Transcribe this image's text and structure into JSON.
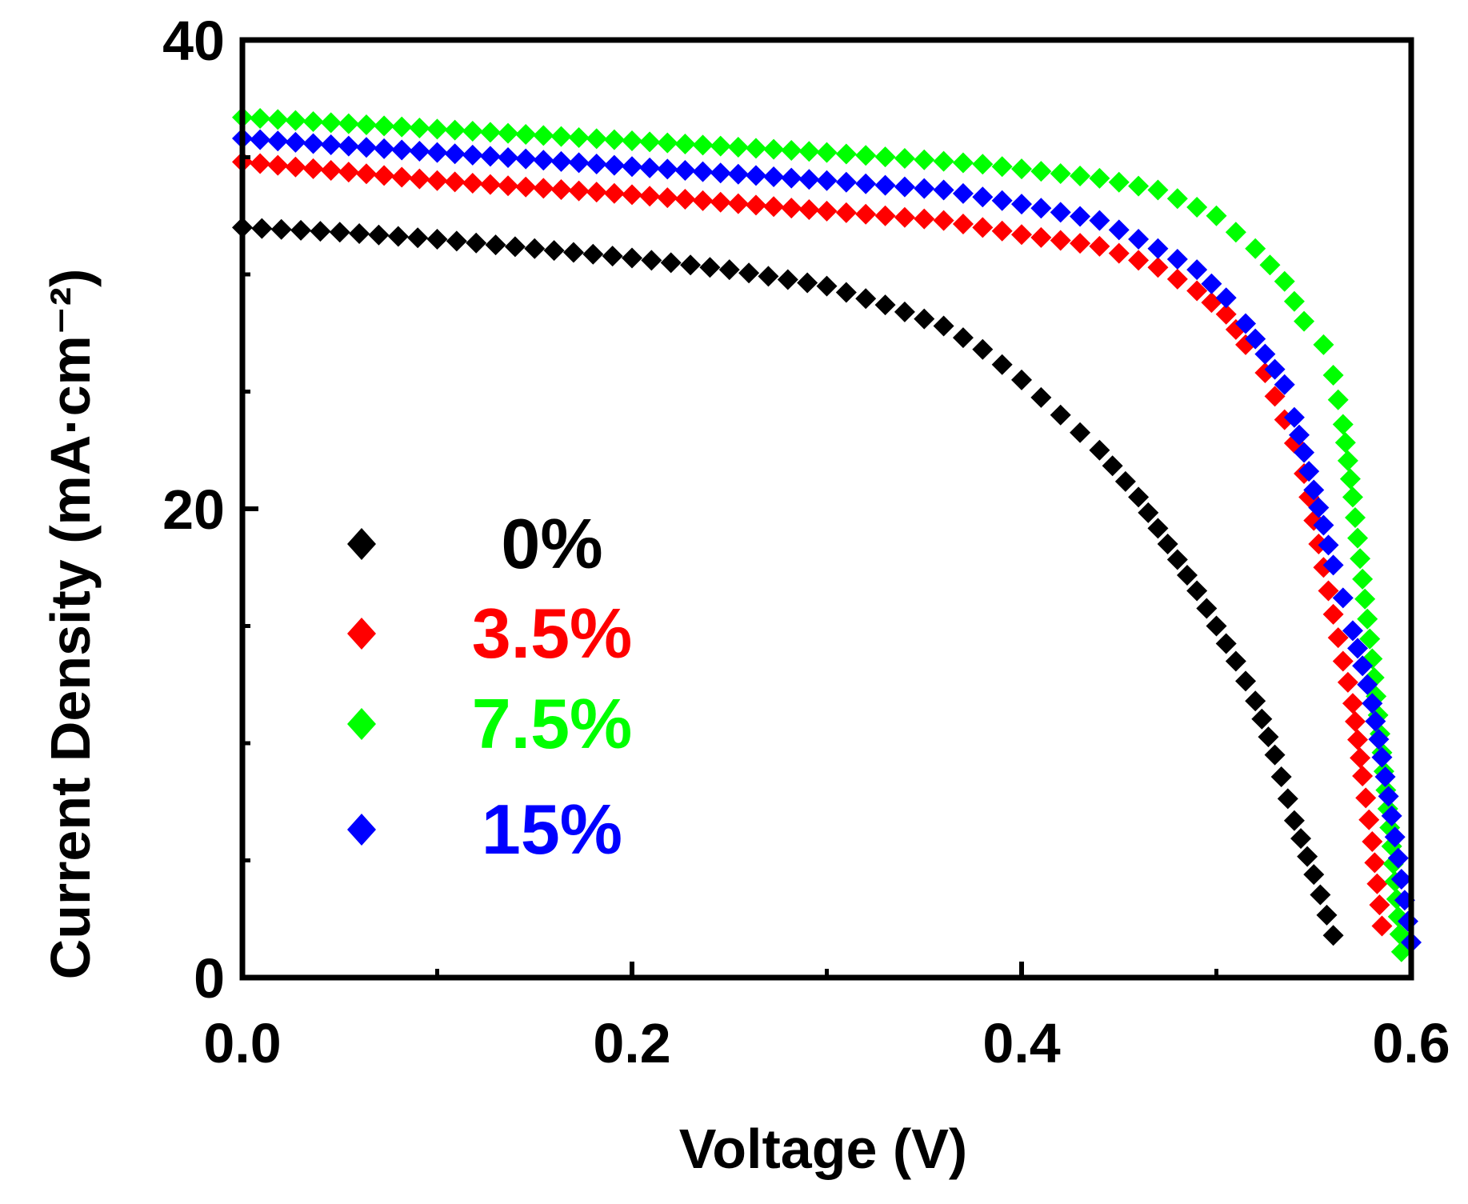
{
  "chart_data": {
    "type": "scatter",
    "title": "",
    "xlabel": "Voltage (V)",
    "ylabel": "Current Density (mA·cm⁻²)",
    "xlim": [
      0.0,
      0.6
    ],
    "ylim": [
      0,
      40
    ],
    "x_ticks": [
      "0.0",
      "0.2",
      "0.4",
      "0.6"
    ],
    "y_ticks": [
      "0",
      "20",
      "40"
    ],
    "x_tick_values": [
      0.0,
      0.2,
      0.4,
      0.6
    ],
    "y_tick_values": [
      0,
      20,
      40
    ],
    "grid": false,
    "legend_position": "center-left",
    "marker": "diamond",
    "series": [
      {
        "name": "0%",
        "color": "#000000",
        "points": [
          [
            0.0,
            32.0
          ],
          [
            0.05,
            31.8
          ],
          [
            0.1,
            31.5
          ],
          [
            0.15,
            31.1
          ],
          [
            0.2,
            30.7
          ],
          [
            0.25,
            30.2
          ],
          [
            0.3,
            29.5
          ],
          [
            0.33,
            28.7
          ],
          [
            0.36,
            27.8
          ],
          [
            0.38,
            26.8
          ],
          [
            0.4,
            25.5
          ],
          [
            0.42,
            24.0
          ],
          [
            0.44,
            22.5
          ],
          [
            0.46,
            20.5
          ],
          [
            0.475,
            18.5
          ],
          [
            0.49,
            16.5
          ],
          [
            0.5,
            15.0
          ],
          [
            0.51,
            13.5
          ],
          [
            0.52,
            11.8
          ],
          [
            0.53,
            9.5
          ],
          [
            0.54,
            6.7
          ],
          [
            0.55,
            4.4
          ],
          [
            0.56,
            1.8
          ]
        ]
      },
      {
        "name": "3.5%",
        "color": "#ff0000",
        "points": [
          [
            0.0,
            34.8
          ],
          [
            0.1,
            34.0
          ],
          [
            0.2,
            33.4
          ],
          [
            0.3,
            32.7
          ],
          [
            0.36,
            32.3
          ],
          [
            0.4,
            31.7
          ],
          [
            0.44,
            31.2
          ],
          [
            0.47,
            30.3
          ],
          [
            0.49,
            29.3
          ],
          [
            0.505,
            28.3
          ],
          [
            0.515,
            27.0
          ],
          [
            0.525,
            25.8
          ],
          [
            0.535,
            23.8
          ],
          [
            0.54,
            22.8
          ],
          [
            0.545,
            21.5
          ],
          [
            0.55,
            19.5
          ],
          [
            0.555,
            17.5
          ],
          [
            0.56,
            15.5
          ],
          [
            0.565,
            13.5
          ],
          [
            0.57,
            11.7
          ],
          [
            0.575,
            8.6
          ],
          [
            0.58,
            5.8
          ],
          [
            0.585,
            2.2
          ]
        ]
      },
      {
        "name": "7.5%",
        "color": "#00ff00",
        "points": [
          [
            0.0,
            36.7
          ],
          [
            0.1,
            36.2
          ],
          [
            0.2,
            35.7
          ],
          [
            0.3,
            35.2
          ],
          [
            0.38,
            34.7
          ],
          [
            0.44,
            34.1
          ],
          [
            0.47,
            33.6
          ],
          [
            0.5,
            32.5
          ],
          [
            0.52,
            31.1
          ],
          [
            0.535,
            29.7
          ],
          [
            0.545,
            28.0
          ],
          [
            0.555,
            27.0
          ],
          [
            0.56,
            25.7
          ],
          [
            0.565,
            23.6
          ],
          [
            0.57,
            20.5
          ],
          [
            0.575,
            17.0
          ],
          [
            0.58,
            13.6
          ],
          [
            0.585,
            9.6
          ],
          [
            0.59,
            5.6
          ],
          [
            0.595,
            1.1
          ]
        ]
      },
      {
        "name": "15%",
        "color": "#0000ff",
        "points": [
          [
            0.0,
            35.8
          ],
          [
            0.1,
            35.2
          ],
          [
            0.2,
            34.6
          ],
          [
            0.3,
            34.0
          ],
          [
            0.36,
            33.6
          ],
          [
            0.4,
            33.0
          ],
          [
            0.44,
            32.3
          ],
          [
            0.47,
            31.1
          ],
          [
            0.49,
            30.2
          ],
          [
            0.505,
            29.0
          ],
          [
            0.515,
            27.9
          ],
          [
            0.525,
            26.6
          ],
          [
            0.535,
            25.3
          ],
          [
            0.54,
            23.9
          ],
          [
            0.545,
            22.4
          ],
          [
            0.55,
            20.8
          ],
          [
            0.555,
            19.3
          ],
          [
            0.56,
            17.6
          ],
          [
            0.565,
            16.2
          ],
          [
            0.57,
            14.8
          ],
          [
            0.575,
            13.3
          ],
          [
            0.58,
            11.7
          ],
          [
            0.585,
            9.4
          ],
          [
            0.59,
            6.9
          ],
          [
            0.595,
            4.2
          ],
          [
            0.6,
            1.5
          ]
        ]
      }
    ]
  }
}
